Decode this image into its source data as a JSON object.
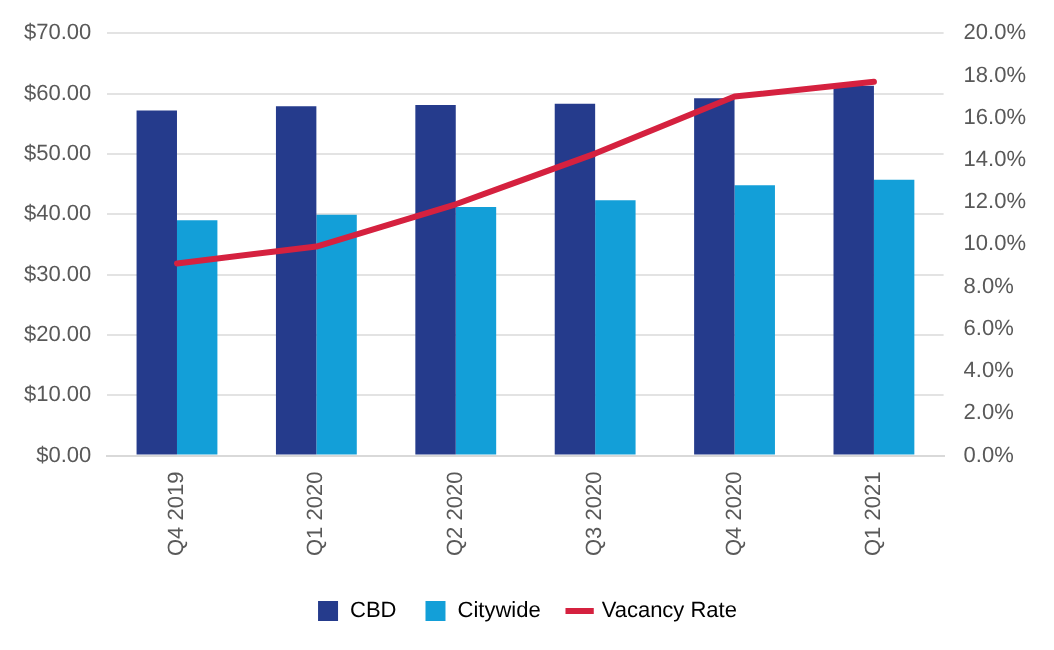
{
  "chart_data": {
    "type": "bar",
    "categories": [
      "Q4 2019",
      "Q1 2020",
      "Q2 2020",
      "Q3 2020",
      "Q4 2020",
      "Q1 2021"
    ],
    "series": [
      {
        "name": "CBD",
        "color": "#253b8c",
        "values": [
          57.2,
          57.9,
          58.1,
          58.3,
          59.2,
          61.3
        ]
      },
      {
        "name": "Citywide",
        "color": "#139fd8",
        "values": [
          39.0,
          39.9,
          41.2,
          42.3,
          44.8,
          45.7
        ]
      },
      {
        "name": "Vacancy Rate",
        "type": "line",
        "axis": "y2",
        "color": "#d5213f",
        "marker": "none",
        "values": [
          9.1,
          9.9,
          11.9,
          14.3,
          17.0,
          17.7
        ]
      }
    ],
    "ylim": [
      0,
      70
    ],
    "yticks": [
      {
        "value": 0,
        "label": "$0.00"
      },
      {
        "value": 10,
        "label": "$10.00"
      },
      {
        "value": 20,
        "label": "$20.00"
      },
      {
        "value": 30,
        "label": "$30.00"
      },
      {
        "value": 40,
        "label": "$40.00"
      },
      {
        "value": 50,
        "label": "$50.00"
      },
      {
        "value": 60,
        "label": "$60.00"
      },
      {
        "value": 70,
        "label": "$70.00"
      }
    ],
    "y2lim": [
      0,
      20
    ],
    "y2ticks": [
      {
        "value": 0,
        "label": "0.0%"
      },
      {
        "value": 2,
        "label": "2.0%"
      },
      {
        "value": 4,
        "label": "4.0%"
      },
      {
        "value": 6,
        "label": "6.0%"
      },
      {
        "value": 8,
        "label": "8.0%"
      },
      {
        "value": 10,
        "label": "10.0%"
      },
      {
        "value": 12,
        "label": "12.0%"
      },
      {
        "value": 14,
        "label": "14.0%"
      },
      {
        "value": 16,
        "label": "16.0%"
      },
      {
        "value": 18,
        "label": "18.0%"
      },
      {
        "value": 20,
        "label": "20.0%"
      }
    ],
    "grid": "y",
    "legend": "bottom"
  }
}
